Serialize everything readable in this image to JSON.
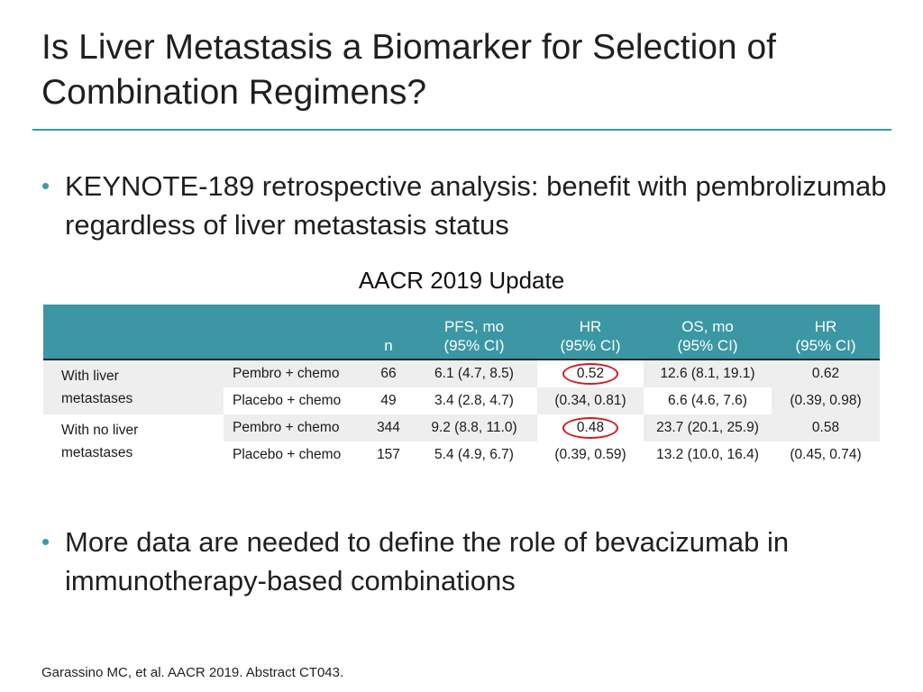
{
  "slide": {
    "title": "Is Liver Metastasis a Biomarker for Selection of Combination Regimens?",
    "bullets": [
      "KEYNOTE-189 retrospective analysis: benefit with pembrolizumab regardless of liver metastasis status",
      "More data are needed to define the role of bevacizumab in immunotherapy-based combinations"
    ],
    "table_title": "AACR 2019 Update",
    "reference": "Garassino MC, et al. AACR 2019. Abstract CT043.",
    "colors": {
      "accent": "#3a97a3",
      "highlight_circle": "#d7191c",
      "row_shade": "#eeeeee"
    }
  },
  "table": {
    "headers": {
      "n": "n",
      "pfs_line1": "PFS, mo",
      "pfs_line2": "(95% CI)",
      "hr1_line1": "HR",
      "hr1_line2": "(95% CI)",
      "os_line1": "OS, mo",
      "os_line2": "(95% CI)",
      "hr2_line1": "HR",
      "hr2_line2": "(95% CI)"
    },
    "groups": [
      {
        "label_line1": "With liver",
        "label_line2": "metastases",
        "rows": [
          {
            "arm": "Pembro + chemo",
            "n": "66",
            "pfs": "6.1 (4.7, 8.5)",
            "pfs_hr": "0.52",
            "os": "12.6 (8.1, 19.1)",
            "os_hr": "0.62"
          },
          {
            "arm": "Placebo + chemo",
            "n": "49",
            "pfs": "3.4 (2.8, 4.7)",
            "pfs_hr": "(0.34, 0.81)",
            "os": "6.6 (4.6, 7.6)",
            "os_hr": "(0.39, 0.98)"
          }
        ]
      },
      {
        "label_line1": "With no liver",
        "label_line2": "metastases",
        "rows": [
          {
            "arm": "Pembro + chemo",
            "n": "344",
            "pfs": "9.2 (8.8, 11.0)",
            "pfs_hr": "0.48",
            "os": "23.7 (20.1, 25.9)",
            "os_hr": "0.58"
          },
          {
            "arm": "Placebo + chemo",
            "n": "157",
            "pfs": "5.4 (4.9, 6.7)",
            "pfs_hr": "(0.39, 0.59)",
            "os": "13.2 (10.0, 16.4)",
            "os_hr": "(0.45, 0.74)"
          }
        ]
      }
    ]
  }
}
